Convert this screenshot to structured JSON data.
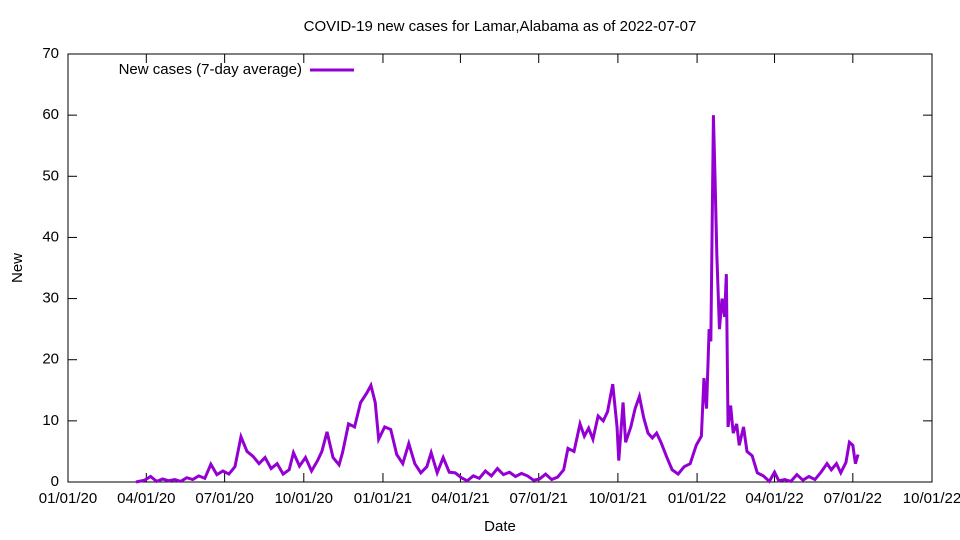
{
  "chart_data": {
    "type": "line",
    "title": "COVID-19 new cases for Lamar,Alabama as of 2022-07-07",
    "x_label": "Date",
    "y_label": "New",
    "x": [
      "2020-03-20",
      "2020-03-30",
      "2020-04-06",
      "2020-04-13",
      "2020-04-20",
      "2020-04-27",
      "2020-05-04",
      "2020-05-11",
      "2020-05-18",
      "2020-05-25",
      "2020-06-01",
      "2020-06-08",
      "2020-06-15",
      "2020-06-22",
      "2020-06-29",
      "2020-07-06",
      "2020-07-13",
      "2020-07-20",
      "2020-07-27",
      "2020-08-03",
      "2020-08-10",
      "2020-08-17",
      "2020-08-24",
      "2020-08-31",
      "2020-09-07",
      "2020-09-14",
      "2020-09-19",
      "2020-09-26",
      "2020-10-03",
      "2020-10-10",
      "2020-10-17",
      "2020-10-22",
      "2020-10-28",
      "2020-11-04",
      "2020-11-11",
      "2020-11-15",
      "2020-11-22",
      "2020-11-29",
      "2020-12-06",
      "2020-12-13",
      "2020-12-18",
      "2020-12-23",
      "2020-12-27",
      "2021-01-03",
      "2021-01-10",
      "2021-01-17",
      "2021-01-24",
      "2021-01-31",
      "2021-02-07",
      "2021-02-14",
      "2021-02-21",
      "2021-02-26",
      "2021-03-05",
      "2021-03-12",
      "2021-03-19",
      "2021-03-26",
      "2021-04-02",
      "2021-04-09",
      "2021-04-16",
      "2021-04-23",
      "2021-04-30",
      "2021-05-07",
      "2021-05-14",
      "2021-05-21",
      "2021-05-28",
      "2021-06-04",
      "2021-06-11",
      "2021-06-18",
      "2021-06-25",
      "2021-07-02",
      "2021-07-09",
      "2021-07-16",
      "2021-07-23",
      "2021-07-30",
      "2021-08-04",
      "2021-08-11",
      "2021-08-18",
      "2021-08-23",
      "2021-08-28",
      "2021-09-02",
      "2021-09-08",
      "2021-09-14",
      "2021-09-19",
      "2021-09-25",
      "2021-09-30",
      "2021-10-02",
      "2021-10-07",
      "2021-10-10",
      "2021-10-16",
      "2021-10-21",
      "2021-10-26",
      "2021-10-31",
      "2021-11-05",
      "2021-11-10",
      "2021-11-15",
      "2021-11-20",
      "2021-11-27",
      "2021-12-03",
      "2021-12-10",
      "2021-12-17",
      "2021-12-24",
      "2021-12-31",
      "2022-01-06",
      "2022-01-09",
      "2022-01-12",
      "2022-01-15",
      "2022-01-17",
      "2022-01-20",
      "2022-01-22",
      "2022-01-24",
      "2022-01-27",
      "2022-01-30",
      "2022-02-02",
      "2022-02-04",
      "2022-02-06",
      "2022-02-09",
      "2022-02-12",
      "2022-02-16",
      "2022-02-19",
      "2022-02-24",
      "2022-02-28",
      "2022-03-06",
      "2022-03-12",
      "2022-03-19",
      "2022-03-26",
      "2022-04-01",
      "2022-04-06",
      "2022-04-13",
      "2022-04-20",
      "2022-04-27",
      "2022-05-04",
      "2022-05-11",
      "2022-05-18",
      "2022-05-25",
      "2022-06-01",
      "2022-06-06",
      "2022-06-12",
      "2022-06-17",
      "2022-06-23",
      "2022-06-27",
      "2022-07-01",
      "2022-07-04",
      "2022-07-07"
    ],
    "series": [
      {
        "name": "New cases (7-day average)",
        "color": "#9400d3",
        "values": [
          0,
          0.3,
          0.9,
          0.1,
          0.5,
          0.2,
          0.4,
          0.1,
          0.7,
          0.4,
          1.0,
          0.6,
          2.9,
          1.2,
          1.8,
          1.3,
          2.5,
          7.4,
          5.0,
          4.2,
          3.0,
          4.0,
          2.2,
          3.0,
          1.3,
          2.0,
          4.8,
          2.6,
          4.0,
          1.8,
          3.5,
          5.0,
          8.2,
          4.0,
          2.8,
          4.8,
          9.5,
          9.0,
          13.0,
          14.5,
          15.8,
          13.0,
          7.0,
          9.0,
          8.6,
          4.5,
          3.0,
          6.3,
          3.0,
          1.5,
          2.5,
          4.8,
          1.5,
          4.0,
          1.6,
          1.5,
          0.7,
          0.2,
          1.0,
          0.6,
          1.8,
          1.0,
          2.2,
          1.2,
          1.6,
          0.9,
          1.4,
          1.0,
          0.3,
          0.5,
          1.3,
          0.4,
          0.8,
          2.0,
          5.5,
          5.0,
          9.5,
          7.5,
          8.8,
          7.0,
          10.8,
          10.0,
          11.5,
          16.0,
          9.0,
          3.5,
          13.0,
          6.5,
          9.0,
          12.0,
          14.0,
          10.5,
          8.0,
          7.2,
          8.0,
          6.5,
          4.0,
          2.0,
          1.3,
          2.5,
          3.0,
          6.0,
          7.5,
          17.0,
          12.0,
          25.0,
          23.0,
          60.0,
          49.0,
          37.0,
          25.0,
          30.0,
          27.0,
          34.0,
          9.0,
          12.5,
          8.0,
          9.5,
          6.0,
          9.0,
          5.0,
          4.3,
          1.5,
          1.0,
          0.1,
          1.6,
          0.2,
          0.4,
          0.1,
          1.2,
          0.3,
          0.9,
          0.4,
          1.6,
          3.0,
          2.0,
          3.0,
          1.5,
          3.2,
          6.5,
          6.0,
          3.0,
          4.5
        ]
      }
    ],
    "xlim": [
      "2020-01-01",
      "2022-10-01"
    ],
    "xticks": [
      {
        "value": "2020-01-01",
        "label": "01/01/20"
      },
      {
        "value": "2020-04-01",
        "label": "04/01/20"
      },
      {
        "value": "2020-07-01",
        "label": "07/01/20"
      },
      {
        "value": "2020-10-01",
        "label": "10/01/20"
      },
      {
        "value": "2021-01-01",
        "label": "01/01/21"
      },
      {
        "value": "2021-04-01",
        "label": "04/01/21"
      },
      {
        "value": "2021-07-01",
        "label": "07/01/21"
      },
      {
        "value": "2021-10-01",
        "label": "10/01/21"
      },
      {
        "value": "2022-01-01",
        "label": "01/01/22"
      },
      {
        "value": "2022-04-01",
        "label": "04/01/22"
      },
      {
        "value": "2022-07-01",
        "label": "07/01/22"
      },
      {
        "value": "2022-10-01",
        "label": "10/01/22"
      }
    ],
    "ylim": [
      0,
      70
    ],
    "yticks": [
      0,
      10,
      20,
      30,
      40,
      50,
      60,
      70
    ],
    "legend": "upper left"
  }
}
